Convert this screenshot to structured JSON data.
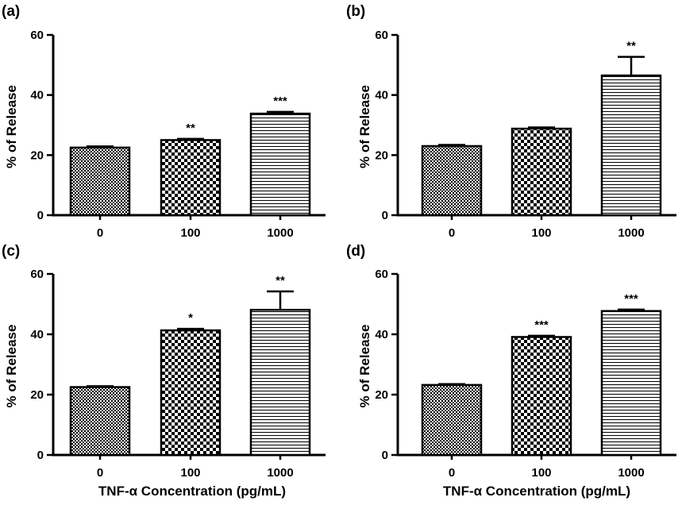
{
  "figure": {
    "x_axis_label_left": "TNF-α Concentration (pg/mL)",
    "x_axis_label_right": "TNF-α Concentration (pg/mL)"
  },
  "colors": {
    "ink": "#000000",
    "background": "#ffffff"
  },
  "chart_data": [
    {
      "type": "bar",
      "panel_label": "(a)",
      "categories": [
        "0",
        "100",
        "1000"
      ],
      "values": [
        22.5,
        25,
        33.8
      ],
      "errors": [
        0.4,
        0.4,
        0.6
      ],
      "significance": [
        "",
        "**",
        "***"
      ],
      "fill_patterns": [
        "fine-checker",
        "coarse-checker",
        "horizontal-lines"
      ],
      "ylabel": "% of Release",
      "ylim": [
        0,
        60
      ],
      "yticks": [
        "0",
        "20",
        "40",
        "60"
      ],
      "grid": false
    },
    {
      "type": "bar",
      "panel_label": "(b)",
      "categories": [
        "0",
        "100",
        "1000"
      ],
      "values": [
        23,
        28.8,
        46.5
      ],
      "errors": [
        0.4,
        0.4,
        6.2
      ],
      "significance": [
        "",
        "",
        "**"
      ],
      "fill_patterns": [
        "fine-checker",
        "coarse-checker",
        "horizontal-lines"
      ],
      "ylabel": "% of Release",
      "ylim": [
        0,
        60
      ],
      "yticks": [
        "0",
        "20",
        "40",
        "60"
      ],
      "grid": false
    },
    {
      "type": "bar",
      "panel_label": "(c)",
      "categories": [
        "0",
        "100",
        "1000"
      ],
      "values": [
        22.5,
        41.3,
        48.1
      ],
      "errors": [
        0.3,
        0.5,
        6.1
      ],
      "significance": [
        "",
        "*",
        "**"
      ],
      "fill_patterns": [
        "fine-checker",
        "coarse-checker",
        "horizontal-lines"
      ],
      "ylabel": "% of Release",
      "ylim": [
        0,
        60
      ],
      "yticks": [
        "0",
        "20",
        "40",
        "60"
      ],
      "grid": false
    },
    {
      "type": "bar",
      "panel_label": "(d)",
      "categories": [
        "0",
        "100",
        "1000"
      ],
      "values": [
        23.2,
        39.1,
        47.7
      ],
      "errors": [
        0.3,
        0.4,
        0.5
      ],
      "significance": [
        "",
        "***",
        "***"
      ],
      "fill_patterns": [
        "fine-checker",
        "coarse-checker",
        "horizontal-lines"
      ],
      "ylabel": "% of Release",
      "ylim": [
        0,
        60
      ],
      "yticks": [
        "0",
        "20",
        "40",
        "60"
      ],
      "grid": false
    }
  ]
}
